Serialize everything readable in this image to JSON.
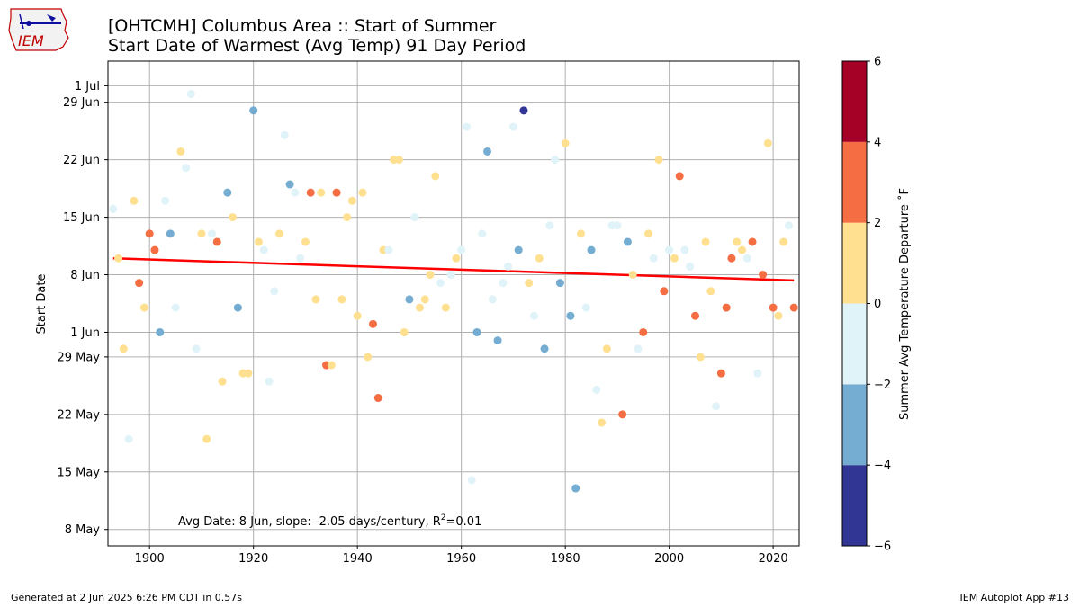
{
  "header": {
    "title": "[OHTCMH] Columbus Area :: Start of Summer",
    "subtitle": "Start Date of Warmest (Avg Temp) 91 Day Period",
    "logo_text": "IEM"
  },
  "footer": {
    "generated": "Generated at 2 Jun 2025 6:26 PM CDT in 0.57s",
    "app": "IEM Autoplot App #13"
  },
  "chart_data": {
    "type": "scatter",
    "ylabel": "Start Date",
    "xlim": [
      1892,
      2025
    ],
    "ylim_day_of_year": [
      126,
      185
    ],
    "x_ticks": [
      1900,
      1920,
      1940,
      1960,
      1980,
      2000,
      2020
    ],
    "y_ticks": [
      {
        "day": 128,
        "label": "8 May"
      },
      {
        "day": 135,
        "label": "15 May"
      },
      {
        "day": 142,
        "label": "22 May"
      },
      {
        "day": 149,
        "label": "29 May"
      },
      {
        "day": 152,
        "label": "1 Jun"
      },
      {
        "day": 159,
        "label": "8 Jun"
      },
      {
        "day": 166,
        "label": "15 Jun"
      },
      {
        "day": 173,
        "label": "22 Jun"
      },
      {
        "day": 180,
        "label": "29 Jun"
      },
      {
        "day": 182,
        "label": "1 Jul"
      }
    ],
    "annotation": "Avg Date: 8 Jun, slope: -2.05 days/century, R²=0.01",
    "trend": {
      "start_year": 1893,
      "start_day": 161.0,
      "end_year": 2024,
      "end_day": 158.3,
      "color": "#ff0000"
    },
    "colorbar": {
      "label": "Summer Avg Temperature Departure ˚F",
      "ticks": [
        -6,
        -4,
        -2,
        0,
        2,
        4,
        6
      ],
      "bins": [
        {
          "from": -6,
          "to": -4,
          "color": "#313695"
        },
        {
          "from": -4,
          "to": -2,
          "color": "#74add1"
        },
        {
          "from": -2,
          "to": 0,
          "color": "#e0f3f8"
        },
        {
          "from": 0,
          "to": 2,
          "color": "#fee090"
        },
        {
          "from": 2,
          "to": 4,
          "color": "#f46d43"
        },
        {
          "from": 4,
          "to": 6,
          "color": "#a50026"
        }
      ]
    },
    "points": [
      {
        "year": 1893,
        "day": 167,
        "c": 2
      },
      {
        "year": 1894,
        "day": 161,
        "c": 3
      },
      {
        "year": 1895,
        "day": 150,
        "c": 3
      },
      {
        "year": 1896,
        "day": 139,
        "c": 2
      },
      {
        "year": 1897,
        "day": 168,
        "c": 3
      },
      {
        "year": 1898,
        "day": 158,
        "c": 4
      },
      {
        "year": 1899,
        "day": 155,
        "c": 3
      },
      {
        "year": 1900,
        "day": 164,
        "c": 4
      },
      {
        "year": 1901,
        "day": 162,
        "c": 4
      },
      {
        "year": 1902,
        "day": 152,
        "c": 1
      },
      {
        "year": 1903,
        "day": 168,
        "c": 2
      },
      {
        "year": 1904,
        "day": 164,
        "c": 1
      },
      {
        "year": 1905,
        "day": 155,
        "c": 2
      },
      {
        "year": 1906,
        "day": 174,
        "c": 3
      },
      {
        "year": 1907,
        "day": 172,
        "c": 2
      },
      {
        "year": 1908,
        "day": 181,
        "c": 2
      },
      {
        "year": 1909,
        "day": 150,
        "c": 2
      },
      {
        "year": 1910,
        "day": 164,
        "c": 3
      },
      {
        "year": 1911,
        "day": 139,
        "c": 3
      },
      {
        "year": 1912,
        "day": 164,
        "c": 2
      },
      {
        "year": 1913,
        "day": 163,
        "c": 4
      },
      {
        "year": 1914,
        "day": 146,
        "c": 3
      },
      {
        "year": 1915,
        "day": 169,
        "c": 1
      },
      {
        "year": 1916,
        "day": 166,
        "c": 3
      },
      {
        "year": 1917,
        "day": 155,
        "c": 1
      },
      {
        "year": 1918,
        "day": 147,
        "c": 3
      },
      {
        "year": 1919,
        "day": 147,
        "c": 3
      },
      {
        "year": 1920,
        "day": 179,
        "c": 1
      },
      {
        "year": 1921,
        "day": 163,
        "c": 3
      },
      {
        "year": 1922,
        "day": 162,
        "c": 2
      },
      {
        "year": 1923,
        "day": 146,
        "c": 2
      },
      {
        "year": 1924,
        "day": 157,
        "c": 2
      },
      {
        "year": 1925,
        "day": 164,
        "c": 3
      },
      {
        "year": 1926,
        "day": 176,
        "c": 2
      },
      {
        "year": 1927,
        "day": 170,
        "c": 1
      },
      {
        "year": 1928,
        "day": 169,
        "c": 2
      },
      {
        "year": 1929,
        "day": 161,
        "c": 2
      },
      {
        "year": 1930,
        "day": 163,
        "c": 3
      },
      {
        "year": 1931,
        "day": 169,
        "c": 4
      },
      {
        "year": 1932,
        "day": 156,
        "c": 3
      },
      {
        "year": 1933,
        "day": 169,
        "c": 3
      },
      {
        "year": 1934,
        "day": 148,
        "c": 4
      },
      {
        "year": 1935,
        "day": 148,
        "c": 3
      },
      {
        "year": 1936,
        "day": 169,
        "c": 4
      },
      {
        "year": 1937,
        "day": 156,
        "c": 3
      },
      {
        "year": 1938,
        "day": 166,
        "c": 3
      },
      {
        "year": 1939,
        "day": 168,
        "c": 3
      },
      {
        "year": 1940,
        "day": 154,
        "c": 3
      },
      {
        "year": 1941,
        "day": 169,
        "c": 3
      },
      {
        "year": 1942,
        "day": 149,
        "c": 3
      },
      {
        "year": 1943,
        "day": 153,
        "c": 4
      },
      {
        "year": 1944,
        "day": 144,
        "c": 4
      },
      {
        "year": 1945,
        "day": 162,
        "c": 3
      },
      {
        "year": 1946,
        "day": 162,
        "c": 2
      },
      {
        "year": 1947,
        "day": 173,
        "c": 3
      },
      {
        "year": 1948,
        "day": 173,
        "c": 3
      },
      {
        "year": 1949,
        "day": 152,
        "c": 3
      },
      {
        "year": 1950,
        "day": 156,
        "c": 1
      },
      {
        "year": 1951,
        "day": 166,
        "c": 2
      },
      {
        "year": 1952,
        "day": 155,
        "c": 3
      },
      {
        "year": 1953,
        "day": 156,
        "c": 3
      },
      {
        "year": 1954,
        "day": 159,
        "c": 3
      },
      {
        "year": 1955,
        "day": 171,
        "c": 3
      },
      {
        "year": 1956,
        "day": 158,
        "c": 2
      },
      {
        "year": 1957,
        "day": 155,
        "c": 3
      },
      {
        "year": 1958,
        "day": 159,
        "c": 2
      },
      {
        "year": 1959,
        "day": 161,
        "c": 3
      },
      {
        "year": 1960,
        "day": 162,
        "c": 2
      },
      {
        "year": 1961,
        "day": 177,
        "c": 2
      },
      {
        "year": 1962,
        "day": 134,
        "c": 2
      },
      {
        "year": 1963,
        "day": 152,
        "c": 1
      },
      {
        "year": 1964,
        "day": 164,
        "c": 2
      },
      {
        "year": 1965,
        "day": 174,
        "c": 1
      },
      {
        "year": 1966,
        "day": 156,
        "c": 2
      },
      {
        "year": 1967,
        "day": 151,
        "c": 1
      },
      {
        "year": 1968,
        "day": 158,
        "c": 2
      },
      {
        "year": 1969,
        "day": 160,
        "c": 2
      },
      {
        "year": 1970,
        "day": 177,
        "c": 2
      },
      {
        "year": 1971,
        "day": 162,
        "c": 1
      },
      {
        "year": 1972,
        "day": 179,
        "c": 0
      },
      {
        "year": 1973,
        "day": 158,
        "c": 3
      },
      {
        "year": 1974,
        "day": 154,
        "c": 2
      },
      {
        "year": 1975,
        "day": 161,
        "c": 3
      },
      {
        "year": 1976,
        "day": 150,
        "c": 1
      },
      {
        "year": 1977,
        "day": 165,
        "c": 2
      },
      {
        "year": 1978,
        "day": 173,
        "c": 2
      },
      {
        "year": 1979,
        "day": 158,
        "c": 1
      },
      {
        "year": 1980,
        "day": 175,
        "c": 3
      },
      {
        "year": 1981,
        "day": 154,
        "c": 1
      },
      {
        "year": 1982,
        "day": 133,
        "c": 1
      },
      {
        "year": 1983,
        "day": 164,
        "c": 3
      },
      {
        "year": 1984,
        "day": 155,
        "c": 2
      },
      {
        "year": 1985,
        "day": 162,
        "c": 1
      },
      {
        "year": 1986,
        "day": 145,
        "c": 2
      },
      {
        "year": 1987,
        "day": 141,
        "c": 3
      },
      {
        "year": 1988,
        "day": 150,
        "c": 3
      },
      {
        "year": 1989,
        "day": 165,
        "c": 2
      },
      {
        "year": 1990,
        "day": 165,
        "c": 2
      },
      {
        "year": 1991,
        "day": 142,
        "c": 4
      },
      {
        "year": 1992,
        "day": 163,
        "c": 1
      },
      {
        "year": 1993,
        "day": 159,
        "c": 3
      },
      {
        "year": 1994,
        "day": 150,
        "c": 2
      },
      {
        "year": 1995,
        "day": 152,
        "c": 4
      },
      {
        "year": 1996,
        "day": 164,
        "c": 3
      },
      {
        "year": 1997,
        "day": 161,
        "c": 2
      },
      {
        "year": 1998,
        "day": 173,
        "c": 3
      },
      {
        "year": 1999,
        "day": 157,
        "c": 4
      },
      {
        "year": 2000,
        "day": 162,
        "c": 2
      },
      {
        "year": 2001,
        "day": 161,
        "c": 3
      },
      {
        "year": 2002,
        "day": 171,
        "c": 4
      },
      {
        "year": 2003,
        "day": 162,
        "c": 2
      },
      {
        "year": 2004,
        "day": 160,
        "c": 2
      },
      {
        "year": 2005,
        "day": 154,
        "c": 4
      },
      {
        "year": 2006,
        "day": 149,
        "c": 3
      },
      {
        "year": 2007,
        "day": 163,
        "c": 3
      },
      {
        "year": 2008,
        "day": 157,
        "c": 3
      },
      {
        "year": 2009,
        "day": 143,
        "c": 2
      },
      {
        "year": 2010,
        "day": 147,
        "c": 4
      },
      {
        "year": 2011,
        "day": 155,
        "c": 4
      },
      {
        "year": 2012,
        "day": 161,
        "c": 4
      },
      {
        "year": 2013,
        "day": 163,
        "c": 3
      },
      {
        "year": 2014,
        "day": 162,
        "c": 3
      },
      {
        "year": 2015,
        "day": 161,
        "c": 2
      },
      {
        "year": 2016,
        "day": 163,
        "c": 4
      },
      {
        "year": 2017,
        "day": 147,
        "c": 2
      },
      {
        "year": 2018,
        "day": 159,
        "c": 4
      },
      {
        "year": 2019,
        "day": 175,
        "c": 3
      },
      {
        "year": 2020,
        "day": 155,
        "c": 4
      },
      {
        "year": 2021,
        "day": 154,
        "c": 3
      },
      {
        "year": 2022,
        "day": 163,
        "c": 3
      },
      {
        "year": 2023,
        "day": 165,
        "c": 2
      },
      {
        "year": 2024,
        "day": 155,
        "c": 4
      }
    ]
  }
}
